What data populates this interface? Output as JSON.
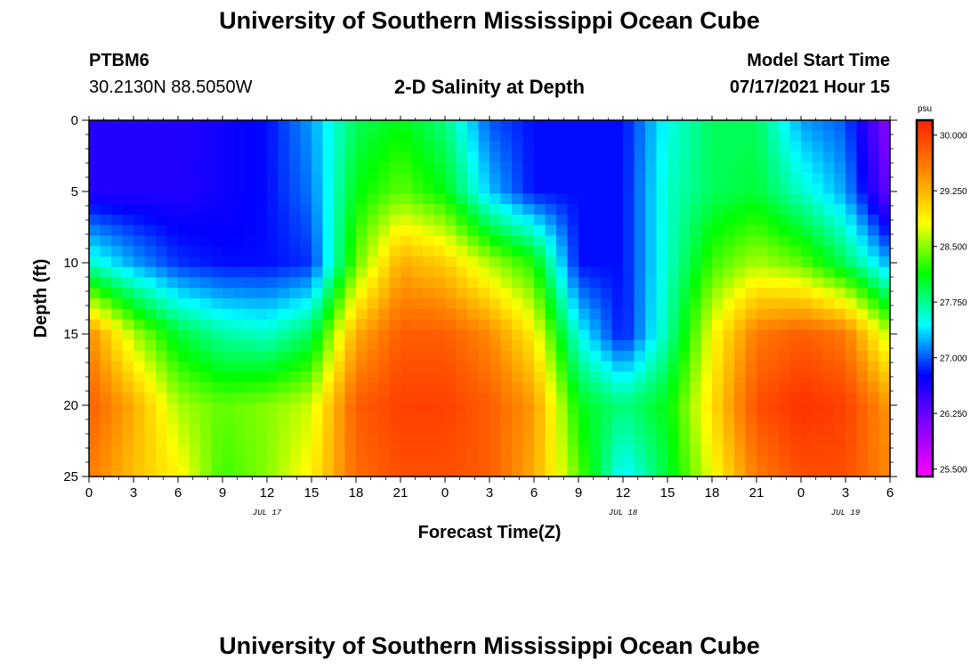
{
  "page": {
    "title_top": "University of Southern Mississippi Ocean Cube",
    "title_bottom": "University of Southern Mississippi Ocean Cube",
    "station_id": "PTBM6",
    "station_coords": "30.2130N  88.5050W",
    "plot_title": "2-D Salinity at Depth",
    "model_start_label": "Model Start Time",
    "model_start_value": "07/17/2021 Hour 15"
  },
  "colors": {
    "ramp": [
      "#ff00ff",
      "#8800ff",
      "#0000ff",
      "#00ffff",
      "#00ff00",
      "#ffff00",
      "#ff8800",
      "#ff2200"
    ]
  },
  "chart_data": {
    "type": "heatmap",
    "xlabel": "Forecast Time(Z)",
    "ylabel": "Depth (ft)",
    "x_tick_labels": [
      "0",
      "3",
      "6",
      "9",
      "12",
      "15",
      "18",
      "21",
      "0",
      "3",
      "6",
      "9",
      "12",
      "15",
      "18",
      "21",
      "0",
      "3",
      "6"
    ],
    "x_tick_hours": [
      0,
      3,
      6,
      9,
      12,
      15,
      18,
      21,
      24,
      27,
      30,
      33,
      36,
      39,
      42,
      45,
      48,
      51,
      54
    ],
    "date_labels": [
      {
        "label": "JUL 17",
        "hour": 12
      },
      {
        "label": "JUL 18",
        "hour": 36
      },
      {
        "label": "JUL 19",
        "hour": 51
      }
    ],
    "xlim": [
      0,
      54
    ],
    "ylim": [
      0,
      25
    ],
    "y_inverted": true,
    "y_ticks": [
      0,
      5,
      10,
      15,
      20,
      25
    ],
    "colorbar": {
      "unit": "psu",
      "range": [
        25.4,
        30.2
      ],
      "tick_labels": [
        "30.000",
        "29.250",
        "28.500",
        "27.750",
        "27.000",
        "26.250",
        "25.500"
      ],
      "tick_values": [
        30.0,
        29.25,
        28.5,
        27.75,
        27.0,
        26.25,
        25.5
      ]
    },
    "time_hours": [
      0,
      3,
      6,
      9,
      12,
      15,
      18,
      21,
      24,
      27,
      30,
      33,
      36,
      39,
      42,
      45,
      48,
      51,
      54
    ],
    "depth_ft": [
      0,
      5,
      10,
      15,
      20,
      25
    ],
    "values_psu": [
      [
        26.6,
        26.6,
        26.6,
        26.7,
        26.8,
        27.2,
        27.9,
        28.1,
        27.8,
        27.0,
        26.8,
        26.8,
        26.8,
        27.5,
        27.9,
        27.9,
        27.2,
        27.0,
        26.0
      ],
      [
        26.6,
        26.6,
        26.6,
        26.7,
        26.8,
        27.1,
        28.1,
        28.4,
        28.1,
        27.3,
        26.8,
        26.8,
        26.8,
        27.6,
        27.9,
        28.0,
        27.6,
        27.2,
        26.2
      ],
      [
        27.6,
        27.2,
        26.9,
        26.8,
        26.8,
        26.9,
        28.4,
        29.3,
        29.1,
        28.6,
        28.2,
        26.8,
        26.8,
        27.6,
        28.3,
        28.6,
        28.4,
        27.9,
        27.2
      ],
      [
        29.5,
        28.6,
        28.0,
        27.7,
        27.6,
        27.9,
        29.3,
        29.8,
        29.8,
        29.5,
        28.9,
        27.5,
        26.8,
        27.7,
        28.8,
        29.6,
        29.8,
        29.6,
        28.6
      ],
      [
        29.8,
        29.3,
        28.6,
        28.4,
        28.5,
        28.7,
        29.8,
        30.0,
        30.0,
        29.8,
        29.4,
        28.1,
        27.8,
        28.1,
        29.0,
        29.9,
        30.1,
        30.0,
        29.4
      ],
      [
        29.6,
        29.2,
        28.9,
        28.3,
        28.5,
        28.9,
        29.7,
        29.9,
        29.9,
        29.8,
        29.3,
        28.4,
        27.4,
        28.0,
        28.8,
        29.6,
        29.9,
        29.9,
        29.5
      ]
    ]
  }
}
